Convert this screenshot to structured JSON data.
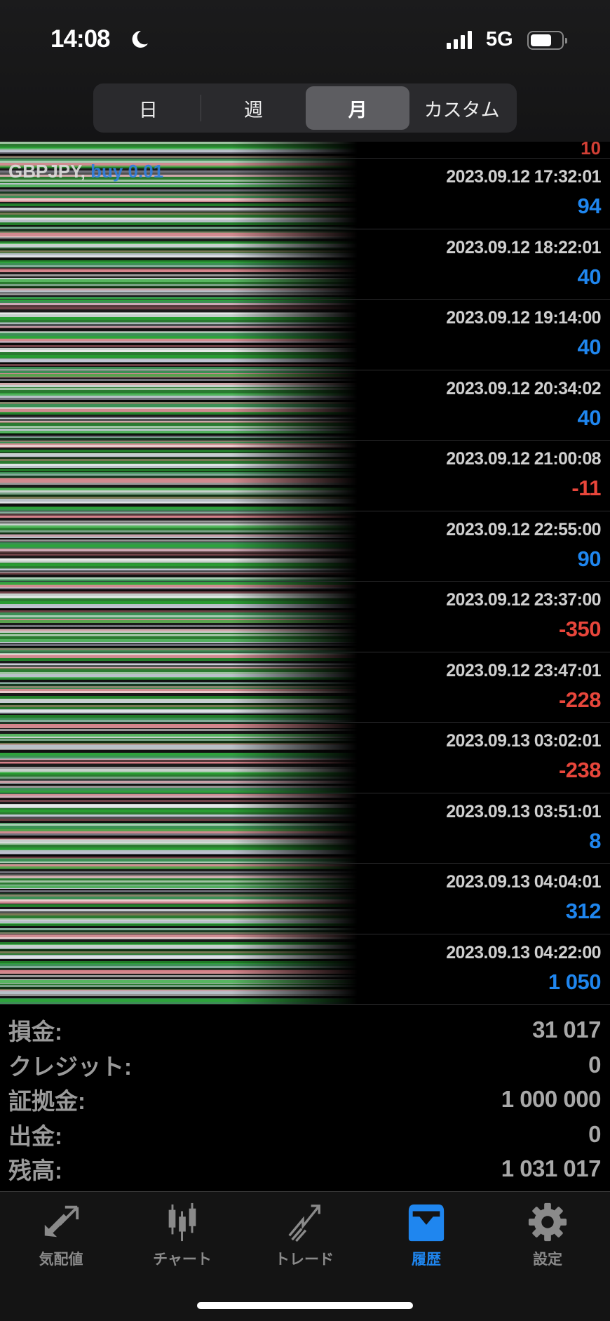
{
  "status_bar": {
    "time": "14:08",
    "network": "5G",
    "battery_level": 0.7
  },
  "segment": {
    "options": [
      "日",
      "週",
      "月",
      "カスタム"
    ],
    "selected": "月"
  },
  "list": {
    "partial_row_value": "10",
    "glitch_texts": [
      {
        "symbol": "GBPJPY,",
        "side": "buy 0.01"
      }
    ],
    "rows": [
      {
        "date": "2023.09.12 17:32:01",
        "profit": "94",
        "sign": "pos"
      },
      {
        "date": "2023.09.12 18:22:01",
        "profit": "40",
        "sign": "pos"
      },
      {
        "date": "2023.09.12 19:14:00",
        "profit": "40",
        "sign": "pos"
      },
      {
        "date": "2023.09.12 20:34:02",
        "profit": "40",
        "sign": "pos"
      },
      {
        "date": "2023.09.12 21:00:08",
        "profit": "-11",
        "sign": "neg"
      },
      {
        "date": "2023.09.12 22:55:00",
        "profit": "90",
        "sign": "pos"
      },
      {
        "date": "2023.09.12 23:37:00",
        "profit": "-350",
        "sign": "neg"
      },
      {
        "date": "2023.09.12 23:47:01",
        "profit": "-228",
        "sign": "neg"
      },
      {
        "date": "2023.09.13 03:02:01",
        "profit": "-238",
        "sign": "neg"
      },
      {
        "date": "2023.09.13 03:51:01",
        "profit": "8",
        "sign": "pos"
      },
      {
        "date": "2023.09.13 04:04:01",
        "profit": "312",
        "sign": "pos"
      },
      {
        "date": "2023.09.13 04:22:00",
        "profit": "1 050",
        "sign": "pos"
      }
    ]
  },
  "summary": [
    {
      "label": "損金:",
      "value": "31 017"
    },
    {
      "label": "クレジット:",
      "value": "0"
    },
    {
      "label": "証拠金:",
      "value": "1 000 000"
    },
    {
      "label": "出金:",
      "value": "0"
    },
    {
      "label": "残高:",
      "value": "1 031 017"
    }
  ],
  "tabs": [
    {
      "label": "気配値",
      "icon": "quotes-arrows-icon"
    },
    {
      "label": "チャート",
      "icon": "candlestick-icon"
    },
    {
      "label": "トレード",
      "icon": "trade-icon"
    },
    {
      "label": "履歴",
      "icon": "inbox-tray-icon",
      "active": true
    },
    {
      "label": "設定",
      "icon": "gear-icon"
    }
  ],
  "colors": {
    "positive": "#1f86ef",
    "negative": "#e8463b",
    "accent": "#1f86ef"
  }
}
